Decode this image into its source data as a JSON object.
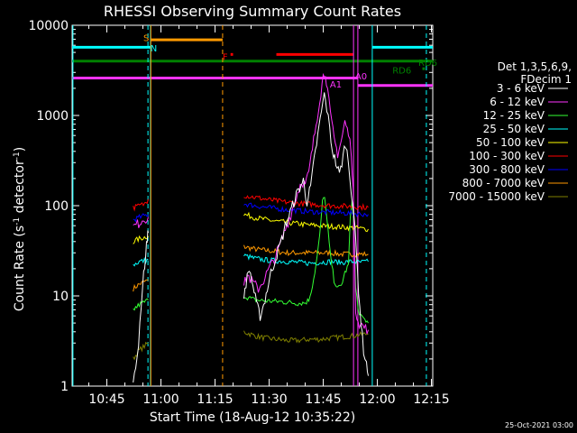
{
  "chart_data": {
    "type": "line",
    "title": "RHESSI Observing Summary Count Rates",
    "xlabel": "Start Time (18-Aug-12 10:35:22)",
    "ylabel": "Count Rate (s⁻¹ detector⁻¹)",
    "ylabel_parts": [
      "Count Rate (s",
      "-1",
      " detector",
      "-1",
      ")"
    ],
    "ylog": true,
    "ylim": [
      1,
      10000
    ],
    "xlim_minutes_after_10_00": [
      35.37,
      135.37
    ],
    "x_ticks": [
      {
        "label": "10:45",
        "minutes": 45
      },
      {
        "label": "11:00",
        "minutes": 60
      },
      {
        "label": "11:15",
        "minutes": 75
      },
      {
        "label": "11:30",
        "minutes": 90
      },
      {
        "label": "11:45",
        "minutes": 105
      },
      {
        "label": "12:00",
        "minutes": 120
      },
      {
        "label": "12:15",
        "minutes": 135
      }
    ],
    "y_ticks": [
      {
        "label": "1",
        "value": 1
      },
      {
        "label": "10",
        "value": 10
      },
      {
        "label": "100",
        "value": 100
      },
      {
        "label": "1000",
        "value": 1000
      },
      {
        "label": "10000",
        "value": 10000
      }
    ],
    "legend": {
      "placement": "right",
      "header": [
        "Det 1,3,5,6,9,",
        "FDecim 1"
      ]
    },
    "series": [
      {
        "name": "3 - 6 keV",
        "color": "#ffffff",
        "segments": [
          [
            [
              52.3,
              1
            ],
            [
              53,
              1.6
            ],
            [
              53.8,
              3
            ],
            [
              54.5,
              8
            ],
            [
              55.2,
              18
            ],
            [
              55.8,
              28
            ],
            [
              56.2,
              45
            ],
            [
              56.5,
              50
            ]
          ],
          [
            [
              83,
              10
            ],
            [
              83.6,
              14
            ],
            [
              84.5,
              20
            ],
            [
              85.5,
              13
            ],
            [
              86.5,
              8
            ],
            [
              87.5,
              6
            ],
            [
              88.5,
              8
            ],
            [
              89.5,
              12
            ],
            [
              90.5,
              18
            ],
            [
              91.5,
              24
            ],
            [
              92.5,
              32
            ],
            [
              93.5,
              42
            ],
            [
              94.5,
              60
            ],
            [
              95.5,
              78
            ],
            [
              96.5,
              100
            ],
            [
              97.5,
              130
            ],
            [
              98.5,
              160
            ],
            [
              99.5,
              190
            ],
            [
              100,
              140
            ],
            [
              100.5,
              110
            ],
            [
              101.5,
              160
            ],
            [
              102.5,
              320
            ],
            [
              103.5,
              600
            ],
            [
              104.5,
              1100
            ],
            [
              105.3,
              1700
            ],
            [
              106,
              1200
            ],
            [
              106.8,
              700
            ],
            [
              107.5,
              420
            ],
            [
              108.5,
              300
            ],
            [
              109.5,
              220
            ],
            [
              110.5,
              350
            ],
            [
              111.2,
              500
            ],
            [
              112,
              300
            ],
            [
              112.8,
              150
            ],
            [
              113.5,
              80
            ],
            [
              114.2,
              30
            ],
            [
              114.8,
              12
            ],
            [
              115.5,
              5
            ],
            [
              116.2,
              2.5
            ],
            [
              117,
              1.8
            ],
            [
              117.5,
              1.3
            ]
          ]
        ]
      },
      {
        "name": "6 - 12 keV",
        "color": "#ff33ff",
        "segments": [
          [
            [
              52.3,
              58
            ],
            [
              53.5,
              62
            ],
            [
              54.8,
              70
            ],
            [
              56.5,
              75
            ]
          ],
          [
            [
              83,
              13
            ],
            [
              84,
              17
            ],
            [
              85.5,
              14
            ],
            [
              87,
              12
            ],
            [
              88.5,
              15
            ],
            [
              90,
              20
            ],
            [
              91.5,
              26
            ],
            [
              93,
              36
            ],
            [
              94.5,
              55
            ],
            [
              96,
              80
            ],
            [
              97.5,
              125
            ],
            [
              99,
              190
            ],
            [
              100,
              170
            ],
            [
              101,
              230
            ],
            [
              102,
              430
            ],
            [
              103,
              800
            ],
            [
              104,
              1500
            ],
            [
              105,
              2700
            ],
            [
              105.6,
              3100
            ],
            [
              106.2,
              1900
            ],
            [
              107,
              1000
            ],
            [
              108,
              550
            ],
            [
              109,
              380
            ],
            [
              110,
              520
            ],
            [
              111,
              850
            ],
            [
              112,
              620
            ],
            [
              112.8,
              400
            ],
            [
              113.3,
              150
            ],
            [
              114,
              7
            ],
            [
              115,
              5
            ],
            [
              116,
              4.6
            ],
            [
              117.5,
              4.2
            ]
          ]
        ]
      },
      {
        "name": "12 - 25 keV",
        "color": "#33ff33",
        "segments": [
          [
            [
              52.3,
              7
            ],
            [
              54,
              8
            ],
            [
              56.5,
              9
            ]
          ],
          [
            [
              83,
              10
            ],
            [
              86,
              9
            ],
            [
              89,
              8.8
            ],
            [
              92,
              8.7
            ],
            [
              95,
              8.5
            ],
            [
              98,
              8.3
            ],
            [
              100,
              8.4
            ],
            [
              101,
              9
            ],
            [
              102,
              13
            ],
            [
              103,
              22
            ],
            [
              104,
              45
            ],
            [
              104.8,
              110
            ],
            [
              105.4,
              130
            ],
            [
              106,
              70
            ],
            [
              107,
              28
            ],
            [
              108,
              15
            ],
            [
              109,
              12
            ],
            [
              110,
              13
            ],
            [
              111,
              18
            ],
            [
              112,
              22
            ],
            [
              112.5,
              70
            ],
            [
              113,
              120
            ],
            [
              113.5,
              60
            ],
            [
              114,
              12
            ],
            [
              115,
              6
            ],
            [
              116.5,
              5.5
            ],
            [
              117.5,
              5
            ]
          ]
        ]
      },
      {
        "name": "25 - 50 keV",
        "color": "#00ffff",
        "segments": [
          [
            [
              52.3,
              22
            ],
            [
              54,
              24
            ],
            [
              56.5,
              25
            ]
          ],
          [
            [
              83,
              28
            ],
            [
              86,
              26
            ],
            [
              89,
              25
            ],
            [
              92,
              24.5
            ],
            [
              95,
              24
            ],
            [
              98,
              23.5
            ],
            [
              101,
              23
            ],
            [
              104,
              23.5
            ],
            [
              107,
              24
            ],
            [
              110,
              23.5
            ],
            [
              113,
              24
            ],
            [
              115,
              23.5
            ],
            [
              117.5,
              24
            ]
          ]
        ]
      },
      {
        "name": "50 - 100 keV",
        "color": "#ffff00",
        "segments": [
          [
            [
              52.3,
              40
            ],
            [
              54,
              43
            ],
            [
              56.5,
              46
            ]
          ],
          [
            [
              83,
              80
            ],
            [
              86,
              74
            ],
            [
              89,
              70
            ],
            [
              92,
              67
            ],
            [
              95,
              65
            ],
            [
              98,
              63
            ],
            [
              101,
              61
            ],
            [
              104,
              60
            ],
            [
              107,
              59
            ],
            [
              110,
              58
            ],
            [
              113,
              57
            ],
            [
              115,
              56
            ],
            [
              117.5,
              55
            ]
          ]
        ]
      },
      {
        "name": "100 - 300 keV",
        "color": "#ff0000",
        "segments": [
          [
            [
              52.3,
              95
            ],
            [
              54,
              100
            ],
            [
              55.5,
              105
            ],
            [
              56.5,
              118
            ]
          ],
          [
            [
              83,
              130
            ],
            [
              86,
              124
            ],
            [
              89,
              118
            ],
            [
              92,
              113
            ],
            [
              95,
              109
            ],
            [
              98,
              106
            ],
            [
              101,
              104
            ],
            [
              104,
              102
            ],
            [
              107,
              100
            ],
            [
              110,
              99
            ],
            [
              113,
              98
            ],
            [
              115,
              97
            ],
            [
              117.5,
              96
            ]
          ]
        ]
      },
      {
        "name": "300 - 800 keV",
        "color": "#0000ff",
        "segments": [
          [
            [
              52.3,
              70
            ],
            [
              54,
              74
            ],
            [
              56.5,
              80
            ]
          ],
          [
            [
              83,
              105
            ],
            [
              86,
              100
            ],
            [
              89,
              96
            ],
            [
              92,
              93
            ],
            [
              95,
              90
            ],
            [
              98,
              88
            ],
            [
              101,
              86
            ],
            [
              104,
              85
            ],
            [
              107,
              84
            ],
            [
              110,
              83
            ],
            [
              113,
              82
            ],
            [
              115,
              81
            ],
            [
              117.5,
              80
            ]
          ]
        ]
      },
      {
        "name": "800 - 7000 keV",
        "color": "#ff9900",
        "segments": [
          [
            [
              52.3,
              12
            ],
            [
              54,
              13.5
            ],
            [
              56.5,
              15
            ]
          ],
          [
            [
              83,
              35
            ],
            [
              86,
              33
            ],
            [
              89,
              32
            ],
            [
              92,
              31
            ],
            [
              95,
              30
            ],
            [
              98,
              30
            ],
            [
              101,
              30
            ],
            [
              104,
              30
            ],
            [
              107,
              30
            ],
            [
              110,
              29
            ],
            [
              113,
              29
            ],
            [
              115,
              29
            ],
            [
              117.5,
              29
            ]
          ]
        ]
      },
      {
        "name": "7000 - 15000 keV",
        "color": "#808000",
        "segments": [
          [
            [
              52.3,
              2
            ],
            [
              54,
              2.5
            ],
            [
              56.5,
              3
            ]
          ],
          [
            [
              83,
              4
            ],
            [
              86,
              3.6
            ],
            [
              89,
              3.4
            ],
            [
              92,
              3.3
            ],
            [
              95,
              3.2
            ],
            [
              98,
              3.2
            ],
            [
              101,
              3.3
            ],
            [
              104,
              3.3
            ],
            [
              107,
              3.4
            ],
            [
              110,
              3.5
            ],
            [
              113,
              3.6
            ],
            [
              115,
              3.7
            ],
            [
              117.5,
              3.8
            ]
          ]
        ]
      }
    ],
    "flag_bars": [
      {
        "color": "#00ffff",
        "value": 5700,
        "from": 35.37,
        "to": 57.1
      },
      {
        "color": "#00ffff",
        "value": 5700,
        "from": 118.6,
        "to": 135.37
      },
      {
        "color": "#ff9900",
        "value": 6900,
        "from": 57.2,
        "to": 77.1
      },
      {
        "color": "#ff0000",
        "value": 4750,
        "from": 92,
        "to": 113.3
      },
      {
        "color": "#ff0000",
        "value": 4750,
        "from": 79.3,
        "to": 80
      },
      {
        "color": "#008000",
        "value": 4000,
        "from": 35.37,
        "to": 135.37
      },
      {
        "color": "#ff33ff",
        "value": 2600,
        "from": 35.37,
        "to": 114.6
      },
      {
        "color": "#ff33ff",
        "value": 2150,
        "from": 114.6,
        "to": 135.37
      },
      {
        "color": "#008000",
        "value": 3300,
        "from": 132.5,
        "to": 133.2
      }
    ],
    "vertical_markers": [
      {
        "color": "#00ffff",
        "x": 35.6,
        "style": "solid"
      },
      {
        "color": "#00ffff",
        "x": 56.4,
        "style": "dashed"
      },
      {
        "color": "#00ffff",
        "x": 57.1,
        "style": "solid"
      },
      {
        "color": "#ff9900",
        "x": 57.2,
        "style": "solid"
      },
      {
        "color": "#ff9900",
        "x": 77.1,
        "style": "dashed"
      },
      {
        "color": "#ff33ff",
        "x": 113.4,
        "style": "solid"
      },
      {
        "color": "#ff33ff",
        "x": 114.6,
        "style": "solid"
      },
      {
        "color": "#00ffff",
        "x": 118.6,
        "style": "solid"
      },
      {
        "color": "#00ffff",
        "x": 133.6,
        "style": "dashed"
      }
    ],
    "annotations": [
      {
        "text": "S",
        "color": "#ff9900",
        "x": 55.9,
        "value": 7300
      },
      {
        "text": "N",
        "color": "#00ffff",
        "x": 58.0,
        "value": 5600
      },
      {
        "text": "F",
        "color": "#ff0000",
        "x": 77.8,
        "value": 4500
      },
      {
        "text": "A1",
        "color": "#ff33ff",
        "x": 108.5,
        "value": 2250
      },
      {
        "text": "A0",
        "color": "#ff33ff",
        "x": 115.5,
        "value": 2750
      },
      {
        "text": "RD6",
        "color": "#008000",
        "x": 126.8,
        "value": 3200
      },
      {
        "text": "RD6",
        "color": "#008000",
        "x": 134.0,
        "value": 3900
      }
    ]
  },
  "footer": {
    "timestamp": "25-Oct-2021 03:00"
  }
}
